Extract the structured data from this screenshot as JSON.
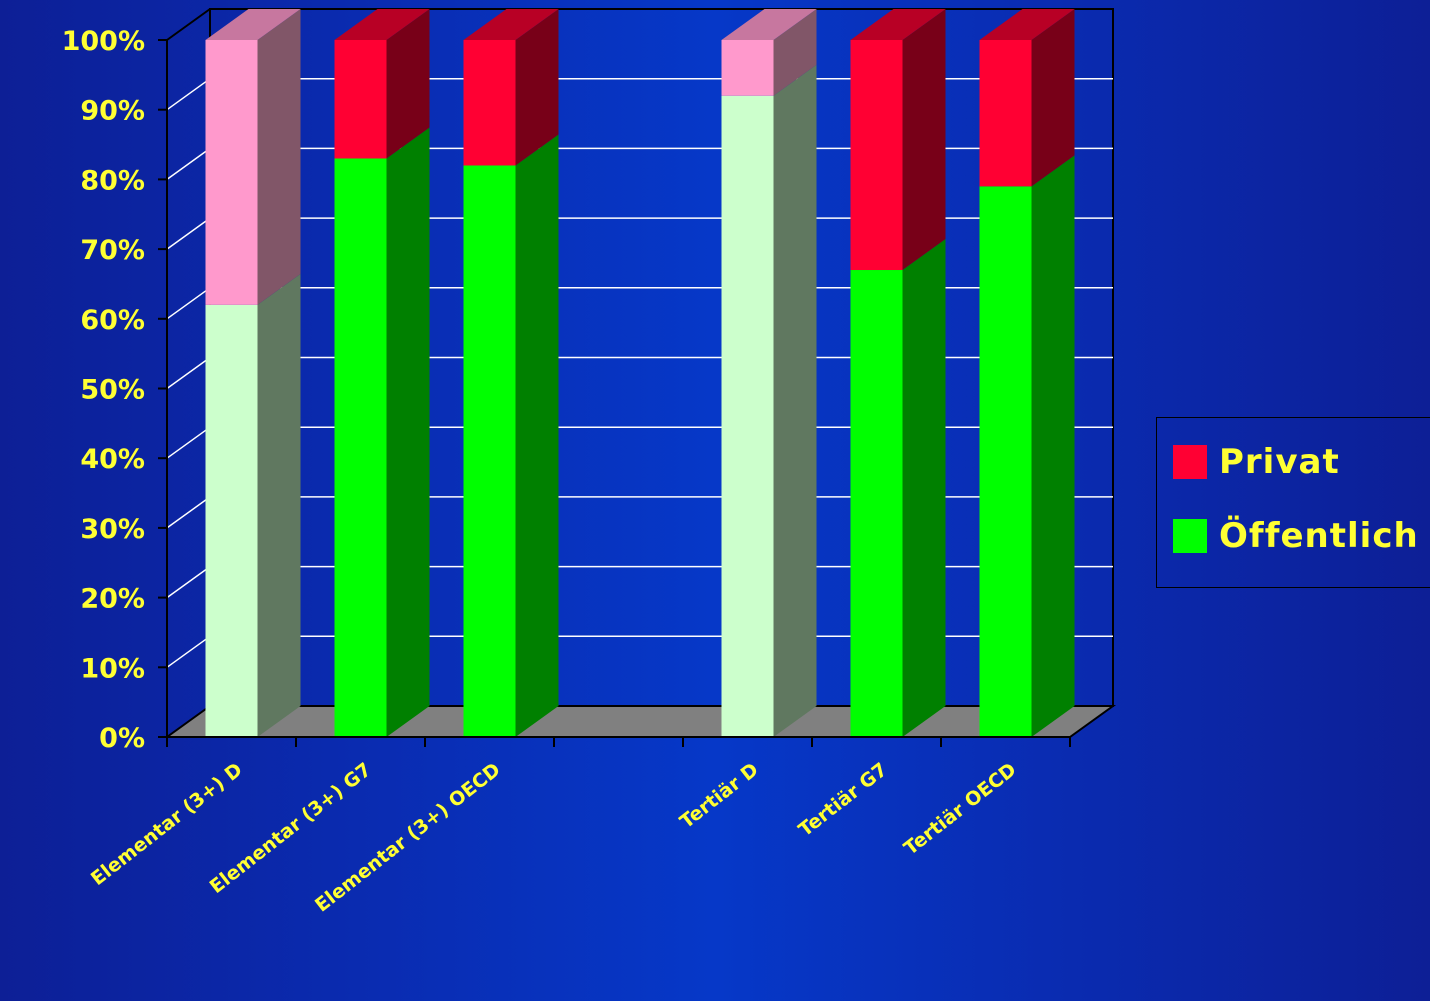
{
  "chart_data": {
    "type": "bar",
    "stacked": "percent",
    "three_d": true,
    "categories": [
      "Elementar (3+) D",
      "Elementar (3+) G7",
      "Elementar (3+) OECD",
      "",
      "Tertiär D",
      "Tertiär G7",
      "Tertiär OECD"
    ],
    "series": [
      {
        "name": "Öffentlich",
        "values": [
          62,
          83,
          82,
          null,
          92,
          67,
          79
        ],
        "color": "#00ff00",
        "highlight_color": "#ccffcc"
      },
      {
        "name": "Privat",
        "values": [
          38,
          17,
          18,
          null,
          8,
          33,
          21
        ],
        "color": "#ff0033",
        "highlight_color": "#ff99cc"
      }
    ],
    "highlighted_categories": [
      "Elementar (3+) D",
      "Tertiär D"
    ],
    "y_ticks": [
      "0%",
      "10%",
      "20%",
      "30%",
      "40%",
      "50%",
      "60%",
      "70%",
      "80%",
      "90%",
      "100%"
    ],
    "ylim": [
      0,
      100
    ],
    "grid": true,
    "legend_position": "right"
  },
  "legend": {
    "privat_label": "Privat",
    "oeffentlich_label": "Öffentlich"
  },
  "colors": {
    "background": "#0638c8",
    "text": "#ffff33",
    "floor": "#808080",
    "gridline": "#ffffff"
  }
}
